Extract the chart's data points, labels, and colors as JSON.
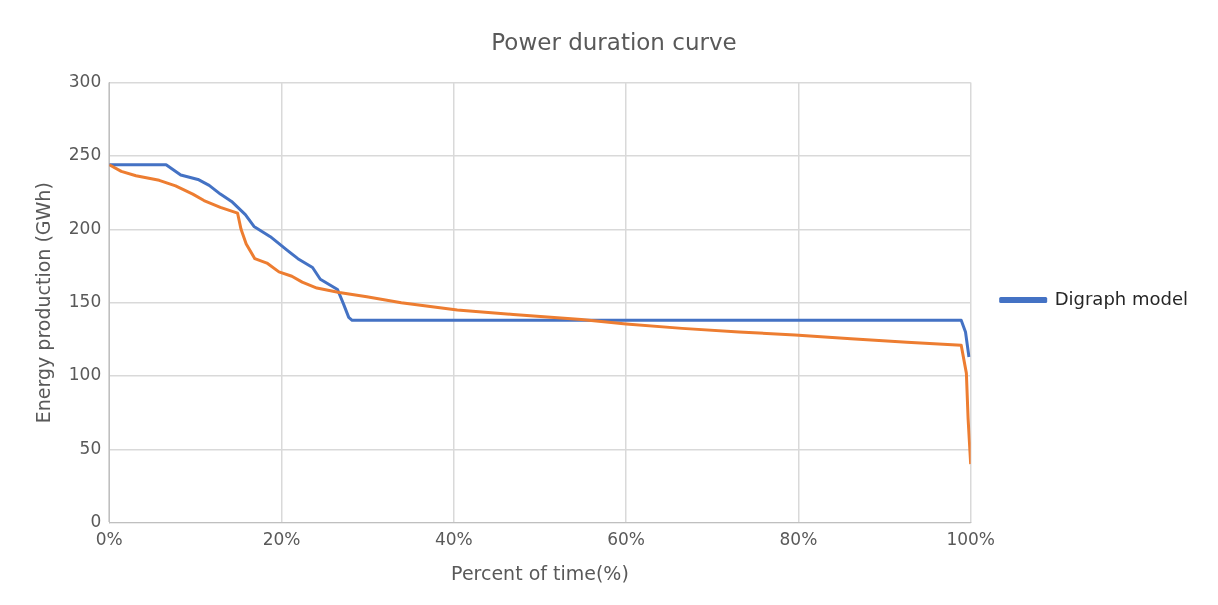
{
  "chart_data": {
    "type": "line",
    "title": "Power duration curve",
    "xlabel": "Percent of time(%)",
    "ylabel": "Energy production (GWh)",
    "xlim": [
      0,
      100
    ],
    "ylim": [
      0,
      300
    ],
    "xticks": [
      {
        "value": 0,
        "label": "0%"
      },
      {
        "value": 20,
        "label": "20%"
      },
      {
        "value": 40,
        "label": "40%"
      },
      {
        "value": 60,
        "label": "60%"
      },
      {
        "value": 80,
        "label": "80%"
      },
      {
        "value": 100,
        "label": "100%"
      }
    ],
    "yticks": [
      0,
      50,
      100,
      150,
      200,
      250,
      300
    ],
    "grid": true,
    "legend": "right",
    "marker": "none",
    "line_style": "solid",
    "series": [
      {
        "color": "#ed7d31",
        "x": [
          0,
          1.4,
          3.1,
          5.8,
          7.7,
          9.7,
          11,
          12.9,
          14.9,
          15.3,
          15.9,
          16.9,
          18.3,
          19.7,
          21.2,
          22.4,
          24.1,
          26.7,
          29.9,
          33.9,
          40.4,
          46.9,
          54.8,
          60,
          66.5,
          73.1,
          79.6,
          86.1,
          92.6,
          98.9,
          99.5,
          99.7,
          100
        ],
        "values": [
          244,
          239.5,
          236.5,
          233.4,
          229.6,
          224,
          219.6,
          215,
          211,
          200,
          190,
          180,
          177,
          171,
          168,
          164,
          160,
          157,
          154,
          150,
          145,
          142,
          138.5,
          135.5,
          132.5,
          130,
          128,
          125.5,
          123,
          121,
          102,
          71,
          40
        ]
      },
      {
        "name": "Digraph model",
        "color": "#4472c4",
        "x": [
          0,
          6.6,
          8.3,
          10.3,
          11.6,
          12.9,
          14.2,
          15.8,
          16.8,
          18.7,
          20.6,
          21.9,
          23.6,
          24.5,
          26.5,
          27.2,
          27.8,
          28.2,
          98.9,
          99.4,
          99.8
        ],
        "values": [
          244,
          244,
          237,
          234,
          230,
          224,
          219,
          210,
          202,
          195,
          186,
          180,
          174,
          166,
          159,
          149,
          140,
          138,
          138,
          130,
          113
        ]
      }
    ]
  }
}
